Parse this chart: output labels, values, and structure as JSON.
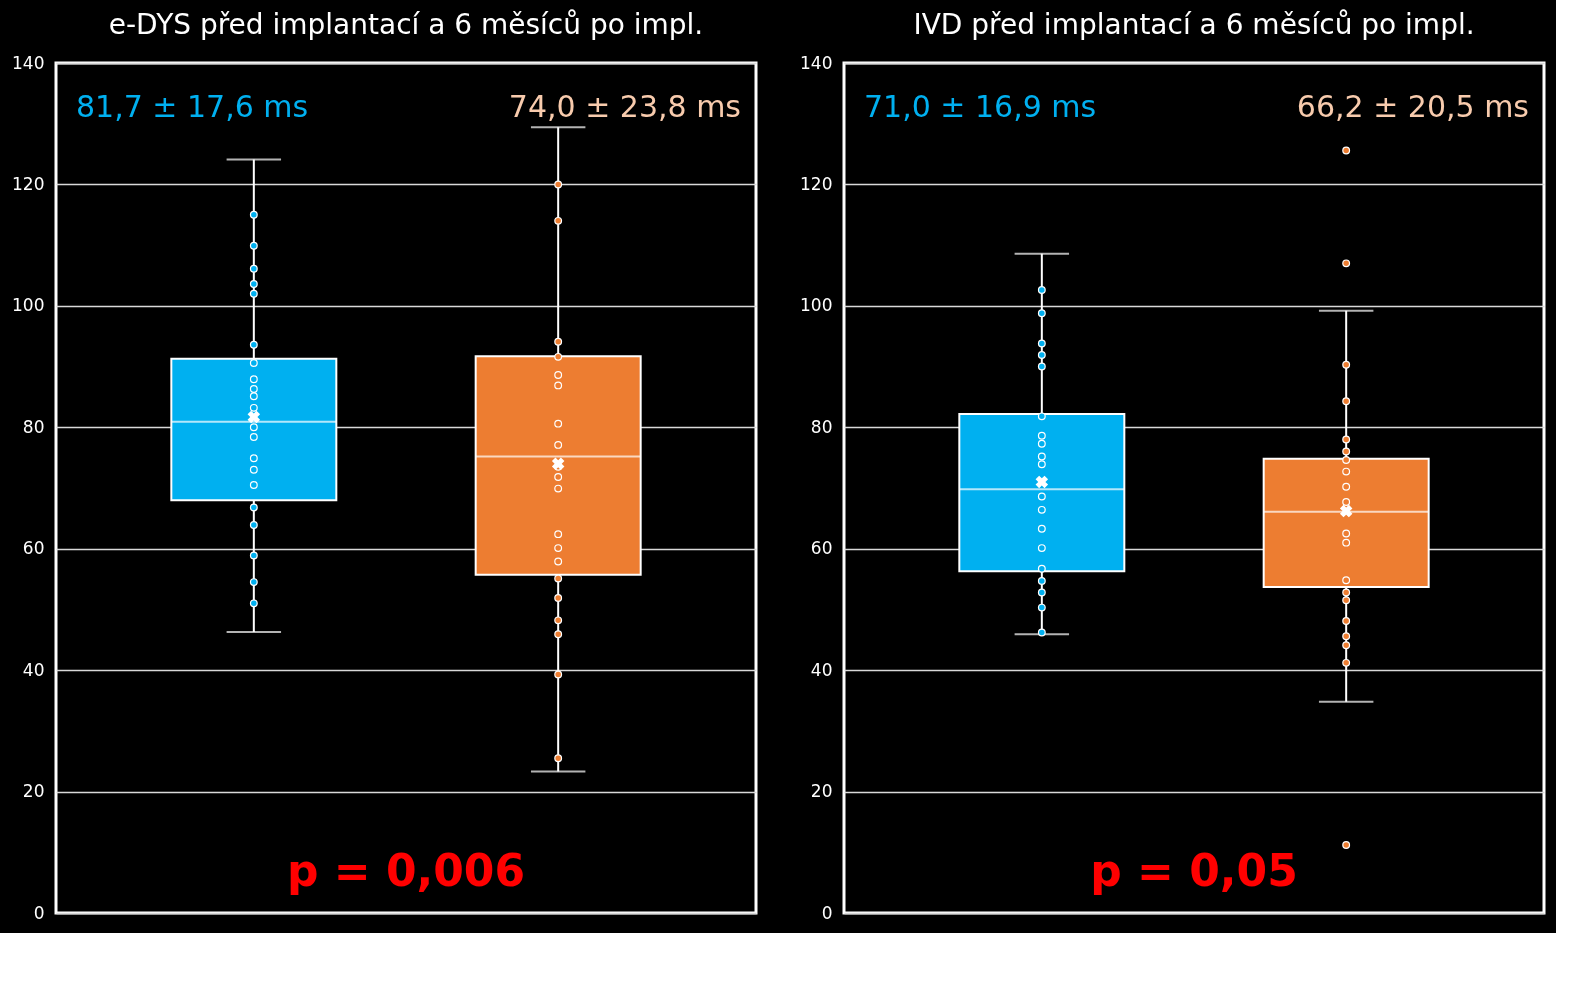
{
  "chart_data": [
    {
      "type": "box",
      "title": "e-DYS před implantací a 6 měsíců po impl.",
      "categories": [
        null,
        null
      ],
      "colors": [
        "#00b0f0",
        "#ed7d31"
      ],
      "boxes": [
        {
          "low": 46.3,
          "q1": 68.0,
          "median": 80.9,
          "q3": 91.3,
          "high": 124.1,
          "mean": 81.7,
          "outliers": [
            115.0,
            109.9,
            106.1,
            103.6,
            102.0,
            93.6,
            90.6,
            87.9,
            86.3,
            85.1,
            83.2,
            80.0,
            78.4,
            74.9,
            73.0,
            70.5,
            66.8,
            63.9,
            58.9,
            54.5,
            51.0
          ]
        },
        {
          "low": 23.3,
          "q1": 55.7,
          "median": 75.2,
          "q3": 91.7,
          "high": 129.4,
          "mean": 74.0,
          "outliers": [
            120.0,
            114.0,
            94.1,
            91.6,
            88.6,
            86.9,
            80.6,
            77.1,
            73.5,
            71.8,
            69.9,
            62.4,
            60.1,
            57.9,
            55.1,
            51.9,
            48.2,
            45.9,
            39.3,
            25.5
          ]
        }
      ],
      "ylim": [
        0,
        140
      ],
      "yticks": [
        0,
        20,
        40,
        60,
        80,
        100,
        120,
        140
      ],
      "grid": "y",
      "marker": "circle",
      "annotations": [
        "81,7 ± 17,6 ms",
        "74,0 ± 23,8 ms",
        "p = 0,006"
      ]
    },
    {
      "type": "box",
      "title": "IVD před implantací a 6 měsíců po impl.",
      "categories": [
        null,
        null
      ],
      "colors": [
        "#00b0f0",
        "#ed7d31"
      ],
      "boxes": [
        {
          "low": 45.9,
          "q1": 56.3,
          "median": 69.8,
          "q3": 82.2,
          "high": 108.6,
          "mean": 71.0,
          "outliers": [
            102.6,
            98.8,
            93.8,
            91.9,
            90.0,
            81.8,
            78.6,
            77.3,
            75.2,
            73.9,
            68.6,
            66.4,
            63.3,
            60.1,
            56.7,
            54.7,
            52.8,
            50.3,
            46.2
          ]
        },
        {
          "low": 34.8,
          "q1": 53.7,
          "median": 66.1,
          "q3": 74.8,
          "high": 99.2,
          "mean": 66.2,
          "outliers": [
            125.6,
            107.0,
            90.3,
            84.3,
            78.0,
            76.0,
            74.6,
            72.7,
            70.2,
            67.7,
            62.5,
            61.0,
            54.8,
            52.8,
            51.5,
            48.1,
            45.6,
            44.1,
            41.2,
            11.2
          ]
        }
      ],
      "ylim": [
        0,
        140
      ],
      "yticks": [
        0,
        20,
        40,
        60,
        80,
        100,
        120,
        140
      ],
      "grid": "y",
      "marker": "circle",
      "annotations": [
        "71,0 ± 16,9 ms",
        "66,2 ± 20,5 ms",
        "p = 0,05"
      ]
    }
  ]
}
